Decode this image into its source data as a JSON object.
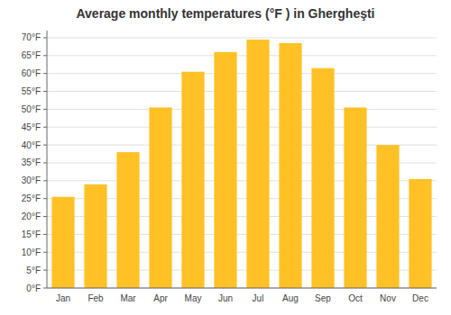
{
  "chart_data": {
    "type": "bar",
    "title": "Average monthly temperatures (°F ) in Ghergheşti",
    "categories": [
      "Jan",
      "Feb",
      "Mar",
      "Apr",
      "May",
      "Jun",
      "Jul",
      "Aug",
      "Sep",
      "Oct",
      "Nov",
      "Dec"
    ],
    "values": [
      25.5,
      29.0,
      38.0,
      50.5,
      60.5,
      66.0,
      69.5,
      68.5,
      61.5,
      50.5,
      40.0,
      30.5
    ],
    "color": "#FFC125",
    "ylim": [
      0,
      72
    ],
    "yticks": [
      {
        "value": 0,
        "label": "0°F"
      },
      {
        "value": 5,
        "label": "5°F"
      },
      {
        "value": 10,
        "label": "10°F"
      },
      {
        "value": 15,
        "label": "15°F"
      },
      {
        "value": 20,
        "label": "20°F"
      },
      {
        "value": 25,
        "label": "25°F"
      },
      {
        "value": 30,
        "label": "30°F"
      },
      {
        "value": 35,
        "label": "35°F"
      },
      {
        "value": 40,
        "label": "40°F"
      },
      {
        "value": 45,
        "label": "45°F"
      },
      {
        "value": 50,
        "label": "50°F"
      },
      {
        "value": 55,
        "label": "55°F"
      },
      {
        "value": 60,
        "label": "60°F"
      },
      {
        "value": 65,
        "label": "65°F"
      },
      {
        "value": 70,
        "label": "70°F"
      }
    ],
    "grid": true
  }
}
